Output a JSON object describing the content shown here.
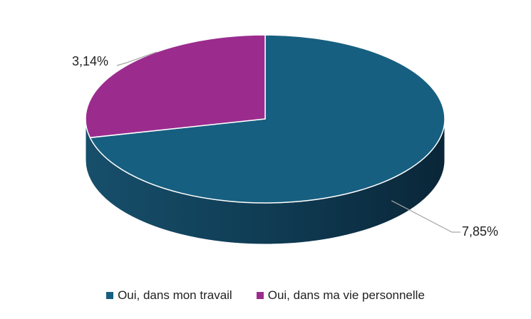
{
  "chart_data": {
    "type": "pie",
    "variant": "3d",
    "title": "",
    "categories": [
      "Oui, dans mon travail",
      "Oui, dans ma vie personnelle"
    ],
    "values": [
      7.85,
      3.14
    ],
    "data_labels": [
      "7,85%",
      "3,14%"
    ],
    "colors": [
      "#175f80",
      "#9b2c8e"
    ],
    "side_colors": [
      "#0f3d55",
      "#6a1e61"
    ],
    "legend_position": "bottom"
  }
}
